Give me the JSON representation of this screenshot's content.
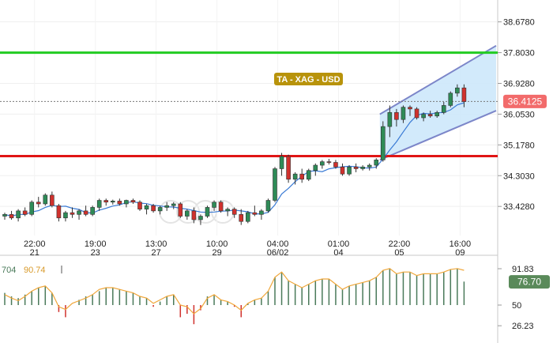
{
  "chart_data": [
    {
      "type": "candlestick",
      "title": "TA - XAG - USD",
      "y_ticks": [
        "38.6780",
        "37.8030",
        "36.9280",
        "36.0530",
        "35.1780",
        "34.3030",
        "33.4280"
      ],
      "ylim": [
        32.6,
        39.3
      ],
      "current_price": 36.4125,
      "current_price_label": "36.4125",
      "resistance_level": 37.803,
      "support_level": 34.86,
      "x_ticks": [
        {
          "time": "22:00",
          "date": "21"
        },
        {
          "time": "19:00",
          "date": "23"
        },
        {
          "time": "13:00",
          "date": "27"
        },
        {
          "time": "10:00",
          "date": "29"
        },
        {
          "time": "04:00",
          "date": "06/02"
        },
        {
          "time": "01:00",
          "date": "04"
        },
        {
          "time": "22:00",
          "date": "05"
        },
        {
          "time": "16:00",
          "date": "09"
        }
      ],
      "candles": [
        [
          33.15,
          33.25,
          33.05,
          33.2
        ],
        [
          33.2,
          33.3,
          33.05,
          33.1
        ],
        [
          33.1,
          33.35,
          33.0,
          33.3
        ],
        [
          33.3,
          33.4,
          33.15,
          33.2
        ],
        [
          33.2,
          33.6,
          33.15,
          33.55
        ],
        [
          33.55,
          33.7,
          33.4,
          33.5
        ],
        [
          33.5,
          33.8,
          33.45,
          33.75
        ],
        [
          33.75,
          33.85,
          33.4,
          33.45
        ],
        [
          33.45,
          33.5,
          33.0,
          33.1
        ],
        [
          33.1,
          33.3,
          33.0,
          33.25
        ],
        [
          33.25,
          33.4,
          33.1,
          33.2
        ],
        [
          33.2,
          33.35,
          33.05,
          33.3
        ],
        [
          33.3,
          33.45,
          33.15,
          33.2
        ],
        [
          33.2,
          33.45,
          33.15,
          33.4
        ],
        [
          33.4,
          33.65,
          33.3,
          33.6
        ],
        [
          33.6,
          33.65,
          33.45,
          33.55
        ],
        [
          33.55,
          33.62,
          33.48,
          33.58
        ],
        [
          33.58,
          33.65,
          33.45,
          33.5
        ],
        [
          33.5,
          33.62,
          33.4,
          33.6
        ],
        [
          33.6,
          33.65,
          33.5,
          33.55
        ],
        [
          33.55,
          33.6,
          33.3,
          33.35
        ],
        [
          33.35,
          33.5,
          33.2,
          33.45
        ],
        [
          33.45,
          33.5,
          33.25,
          33.3
        ],
        [
          33.3,
          33.45,
          33.2,
          33.4
        ],
        [
          33.4,
          33.55,
          33.3,
          33.45
        ],
        [
          33.45,
          33.55,
          33.35,
          33.5
        ],
        [
          33.5,
          33.55,
          33.1,
          33.15
        ],
        [
          33.15,
          33.35,
          33.05,
          33.3
        ],
        [
          33.3,
          33.4,
          32.95,
          33.05
        ],
        [
          33.05,
          33.2,
          32.9,
          33.15
        ],
        [
          33.15,
          33.45,
          33.1,
          33.4
        ],
        [
          33.4,
          33.6,
          33.3,
          33.55
        ],
        [
          33.55,
          33.6,
          33.25,
          33.3
        ],
        [
          33.3,
          33.4,
          33.15,
          33.35
        ],
        [
          33.35,
          33.4,
          33.1,
          33.2
        ],
        [
          33.2,
          33.35,
          32.9,
          33.0
        ],
        [
          33.0,
          33.3,
          32.95,
          33.25
        ],
        [
          33.25,
          33.45,
          33.15,
          33.2
        ],
        [
          33.2,
          33.35,
          33.05,
          33.3
        ],
        [
          33.3,
          33.65,
          33.25,
          33.6
        ],
        [
          33.6,
          34.55,
          33.55,
          34.5
        ],
        [
          34.5,
          34.95,
          34.3,
          34.85
        ],
        [
          34.85,
          34.9,
          34.1,
          34.2
        ],
        [
          34.2,
          34.4,
          34.05,
          34.35
        ],
        [
          34.35,
          34.5,
          34.1,
          34.2
        ],
        [
          34.2,
          34.5,
          34.15,
          34.45
        ],
        [
          34.45,
          34.65,
          34.3,
          34.6
        ],
        [
          34.6,
          34.75,
          34.5,
          34.7
        ],
        [
          34.7,
          34.78,
          34.62,
          34.68
        ],
        [
          34.68,
          34.75,
          34.5,
          34.55
        ],
        [
          34.55,
          34.65,
          34.3,
          34.35
        ],
        [
          34.35,
          34.6,
          34.3,
          34.55
        ],
        [
          34.55,
          34.65,
          34.4,
          34.5
        ],
        [
          34.5,
          34.6,
          34.45,
          34.55
        ],
        [
          34.55,
          34.65,
          34.45,
          34.6
        ],
        [
          34.6,
          34.8,
          34.5,
          34.75
        ],
        [
          34.75,
          35.85,
          34.7,
          35.7
        ],
        [
          35.7,
          36.3,
          35.4,
          36.1
        ],
        [
          36.1,
          36.2,
          35.7,
          35.9
        ],
        [
          35.9,
          36.3,
          35.8,
          36.25
        ],
        [
          36.25,
          36.3,
          36.0,
          36.2
        ],
        [
          36.2,
          36.25,
          35.9,
          35.95
        ],
        [
          35.95,
          36.1,
          35.85,
          36.05
        ],
        [
          36.05,
          36.15,
          35.95,
          36.0
        ],
        [
          36.0,
          36.15,
          35.95,
          36.1
        ],
        [
          36.1,
          36.4,
          36.05,
          36.3
        ],
        [
          36.3,
          36.7,
          36.25,
          36.65
        ],
        [
          36.65,
          36.9,
          36.55,
          36.8
        ],
        [
          36.8,
          36.9,
          36.25,
          36.41
        ]
      ],
      "channel_fill": "#cde8fb",
      "channel_stroke": "#7c86c9",
      "ma_color": "#3a7bd5"
    },
    {
      "type": "oscillator",
      "value_label_left": "704",
      "value_label_right": "90.74",
      "y_ticks": [
        "91.83",
        "50",
        "26.23"
      ],
      "ylim": [
        10,
        100
      ],
      "current_value_label": "76.70",
      "current_value": 76.7,
      "line_values": [
        62,
        58,
        55,
        60,
        66,
        70,
        72,
        64,
        48,
        45,
        52,
        55,
        58,
        62,
        68,
        70,
        70,
        68,
        66,
        64,
        60,
        58,
        52,
        56,
        60,
        62,
        50,
        48,
        40,
        46,
        58,
        62,
        56,
        54,
        50,
        44,
        52,
        56,
        58,
        66,
        82,
        88,
        78,
        74,
        70,
        74,
        78,
        80,
        80,
        74,
        68,
        72,
        74,
        76,
        78,
        82,
        90,
        92,
        86,
        88,
        88,
        84,
        86,
        86,
        86,
        88,
        91,
        92,
        90
      ],
      "bar_values": [
        64,
        60,
        58,
        62,
        66,
        70,
        72,
        64,
        42,
        36,
        50,
        56,
        60,
        62,
        66,
        70,
        70,
        68,
        66,
        64,
        60,
        58,
        48,
        54,
        60,
        62,
        36,
        40,
        28,
        44,
        60,
        62,
        56,
        54,
        48,
        36,
        52,
        56,
        58,
        66,
        82,
        88,
        78,
        74,
        70,
        74,
        78,
        80,
        80,
        74,
        68,
        72,
        74,
        76,
        78,
        82,
        90,
        92,
        86,
        88,
        88,
        84,
        86,
        86,
        86,
        88,
        91,
        92,
        77
      ],
      "line_color": "#f0a73a",
      "bar_up_color": "#4a7a5a",
      "bar_down_color": "#d0312d"
    }
  ]
}
